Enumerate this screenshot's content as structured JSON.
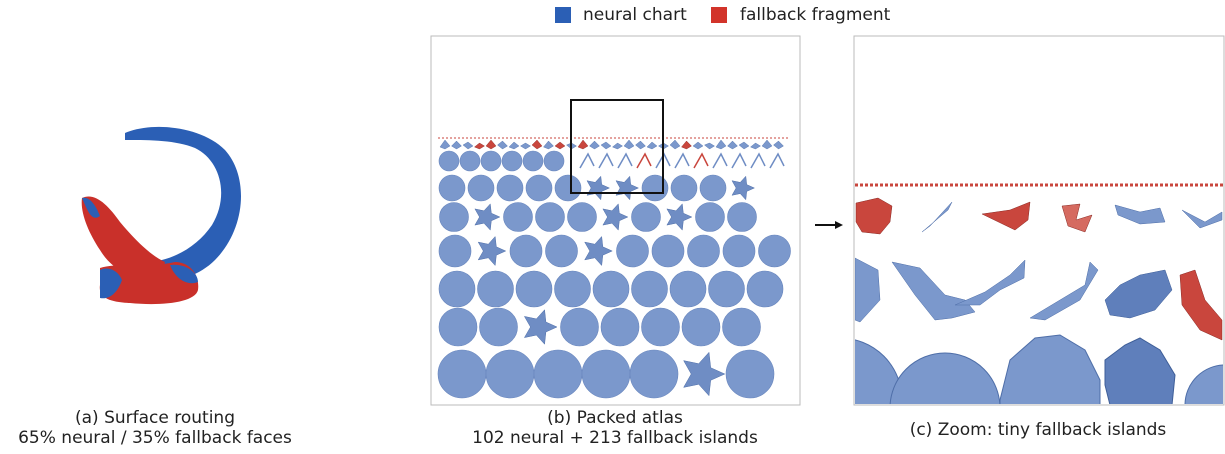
{
  "legend": [
    {
      "label": "neural chart"
    },
    {
      "label": "fallback fragment"
    }
  ],
  "panels": [
    {
      "caption": [
        "(a) Surface routing",
        "65% neural / 35% fallback faces"
      ]
    },
    {
      "caption": [
        "(b) Packed atlas",
        "102 neural + 213 fallback islands"
      ]
    },
    {
      "caption": [
        "(c) Zoom: tiny fallback islands"
      ]
    }
  ]
}
